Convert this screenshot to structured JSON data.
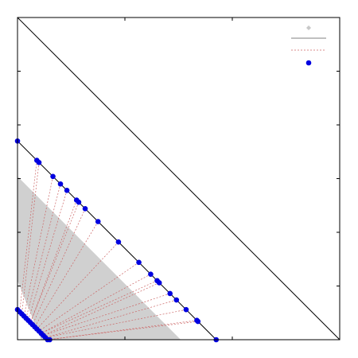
{
  "chart_data": {
    "type": "scatter",
    "title": "",
    "xlabel": "",
    "ylabel": "",
    "xlim": [
      0,
      3
    ],
    "ylim": [
      0,
      3
    ],
    "grid": false,
    "legend_position": "top-right",
    "colors": {
      "shaded_points": "#d0d0d0",
      "diagonal_line": "#9a9a9a",
      "connectors": "#cc6666",
      "points": "#0000e0"
    },
    "shaded_region_polygon": [
      [
        0.0,
        1.52
      ],
      [
        0.0,
        0.55
      ],
      [
        0.22,
        0.0
      ],
      [
        1.52,
        0.0
      ]
    ],
    "diagonal_lines": [
      {
        "x": [
          0,
          3
        ],
        "y": [
          3,
          0
        ]
      },
      {
        "x": [
          0,
          1.85
        ],
        "y": [
          1.85,
          0
        ]
      }
    ],
    "outer_points": [
      {
        "x": 0.0,
        "y": 1.85
      },
      {
        "x": 0.18,
        "y": 1.67
      },
      {
        "x": 0.2,
        "y": 1.65
      },
      {
        "x": 0.33,
        "y": 1.52
      },
      {
        "x": 0.4,
        "y": 1.45
      },
      {
        "x": 0.46,
        "y": 1.39
      },
      {
        "x": 0.55,
        "y": 1.3
      },
      {
        "x": 0.57,
        "y": 1.28
      },
      {
        "x": 0.63,
        "y": 1.22
      },
      {
        "x": 0.75,
        "y": 1.1
      },
      {
        "x": 0.94,
        "y": 0.91
      },
      {
        "x": 1.13,
        "y": 0.72
      },
      {
        "x": 1.24,
        "y": 0.61
      },
      {
        "x": 1.3,
        "y": 0.55
      },
      {
        "x": 1.32,
        "y": 0.53
      },
      {
        "x": 1.42,
        "y": 0.43
      },
      {
        "x": 1.48,
        "y": 0.37
      },
      {
        "x": 1.57,
        "y": 0.28
      },
      {
        "x": 1.67,
        "y": 0.18
      },
      {
        "x": 1.68,
        "y": 0.17
      },
      {
        "x": 1.85,
        "y": 0.0
      }
    ],
    "inner_points": [
      {
        "x": 0.0,
        "y": 0.28
      },
      {
        "x": 0.02,
        "y": 0.26
      },
      {
        "x": 0.04,
        "y": 0.24
      },
      {
        "x": 0.06,
        "y": 0.22
      },
      {
        "x": 0.08,
        "y": 0.2
      },
      {
        "x": 0.1,
        "y": 0.18
      },
      {
        "x": 0.12,
        "y": 0.16
      },
      {
        "x": 0.14,
        "y": 0.14
      },
      {
        "x": 0.16,
        "y": 0.12
      },
      {
        "x": 0.18,
        "y": 0.1
      },
      {
        "x": 0.2,
        "y": 0.08
      },
      {
        "x": 0.22,
        "y": 0.06
      },
      {
        "x": 0.24,
        "y": 0.04
      },
      {
        "x": 0.26,
        "y": 0.02
      },
      {
        "x": 0.28,
        "y": 0.0
      },
      {
        "x": 0.3,
        "y": 0.0
      }
    ],
    "connections": [
      [
        0,
        0
      ],
      [
        1,
        1
      ],
      [
        2,
        2
      ],
      [
        3,
        3
      ],
      [
        4,
        4
      ],
      [
        5,
        5
      ],
      [
        6,
        6
      ],
      [
        7,
        6
      ],
      [
        8,
        7
      ],
      [
        9,
        8
      ],
      [
        10,
        9
      ],
      [
        11,
        10
      ],
      [
        12,
        11
      ],
      [
        13,
        11
      ],
      [
        14,
        12
      ],
      [
        15,
        12
      ],
      [
        16,
        13
      ],
      [
        17,
        13
      ],
      [
        18,
        14
      ],
      [
        19,
        14
      ],
      [
        20,
        15
      ]
    ],
    "legend": [
      {
        "marker": "diamond",
        "color": "#c8c8c8",
        "label": ""
      },
      {
        "marker": "line",
        "color": "#9a9a9a",
        "label": ""
      },
      {
        "marker": "dotted-line",
        "color": "#cc6666",
        "label": ""
      },
      {
        "marker": "circle",
        "color": "#0000e0",
        "label": ""
      }
    ]
  }
}
